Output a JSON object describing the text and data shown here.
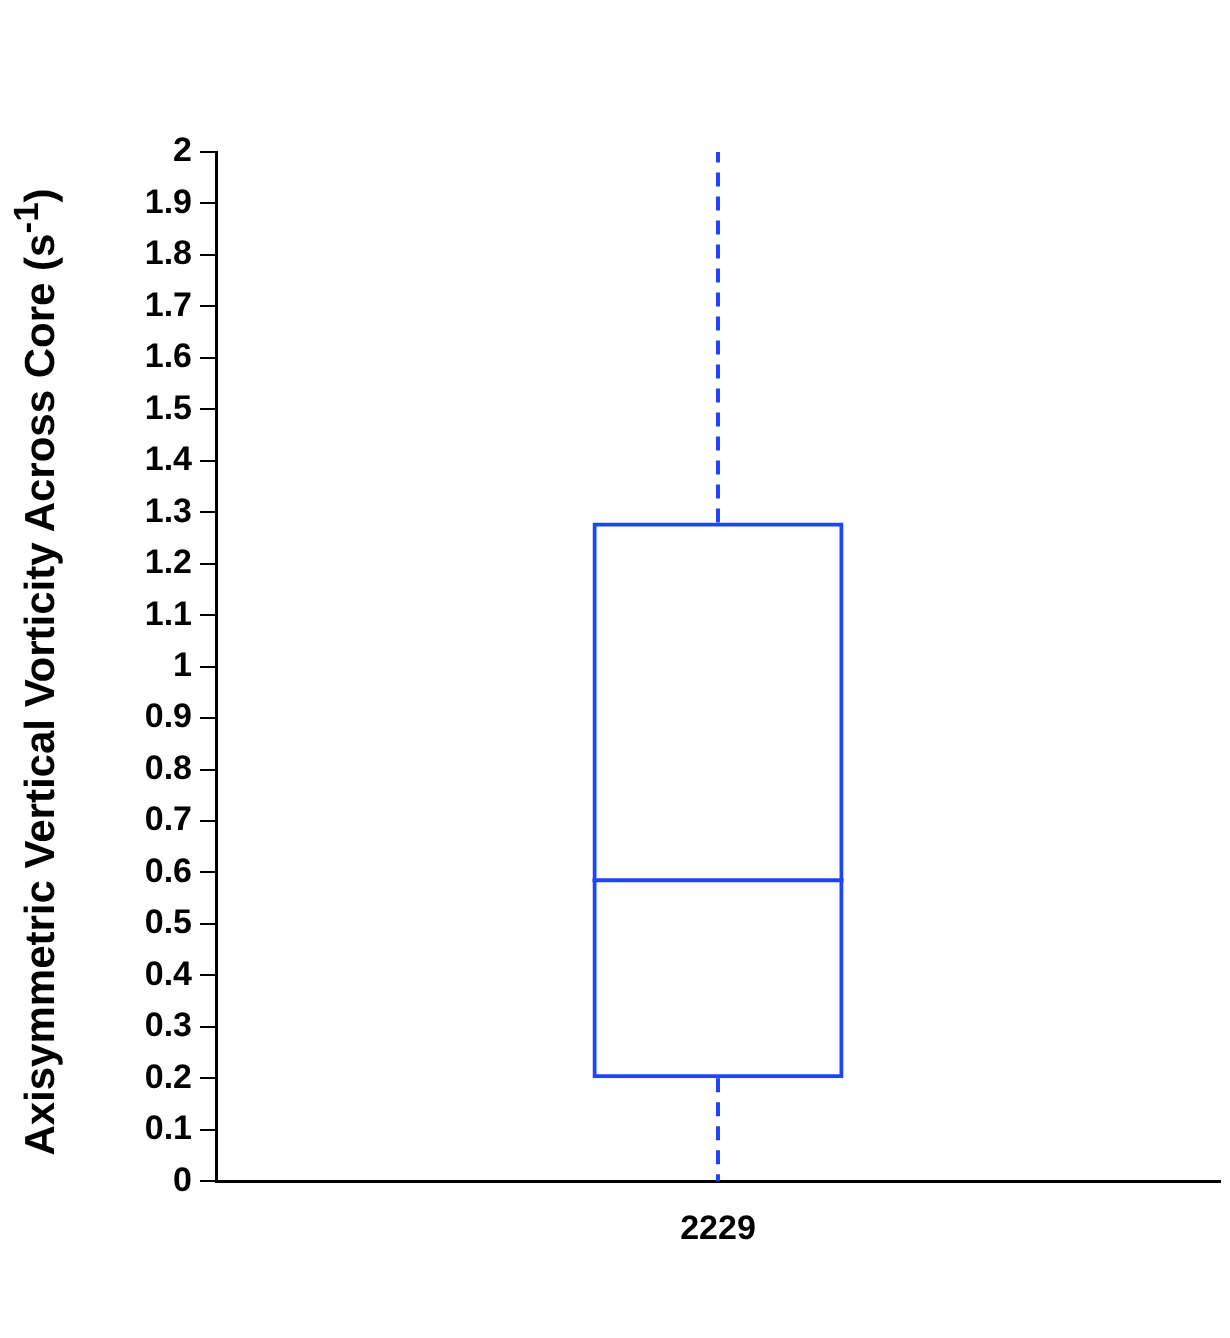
{
  "chart_data": {
    "type": "box",
    "ylabel": "Axisymmetric Vertical Vorticity Across Core (s$^{-1}$)",
    "categories": [
      "2229"
    ],
    "color": "#1f45fc",
    "boxes": [
      {
        "low": 0,
        "q1": 0.2,
        "median": 0.585,
        "q3": 1.28,
        "high": 2.0
      }
    ],
    "ylim": [
      0,
      2
    ],
    "yticks": [
      0,
      0.1,
      0.2,
      0.3,
      0.4,
      0.5,
      0.6,
      0.7,
      0.8,
      0.9,
      1,
      1.1,
      1.2,
      1.3,
      1.4,
      1.5,
      1.6,
      1.7,
      1.8,
      1.9,
      2
    ],
    "grid": false
  }
}
